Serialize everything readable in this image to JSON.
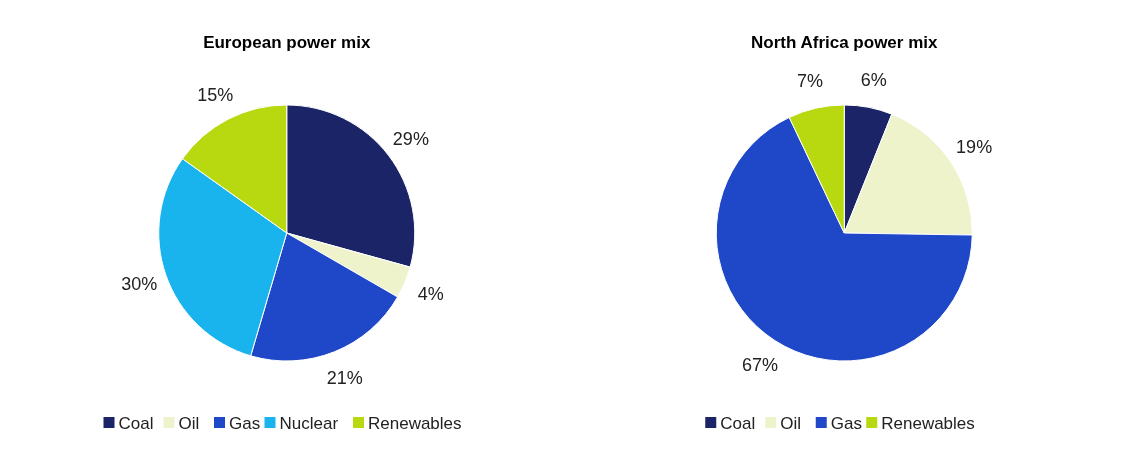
{
  "chart_data": [
    {
      "type": "pie",
      "title": "European power mix",
      "categories": [
        "Coal",
        "Oil",
        "Gas",
        "Nuclear",
        "Renewables"
      ],
      "values": [
        29,
        4,
        21,
        30,
        15
      ],
      "colors": [
        "#1a2466",
        "#eef3cc",
        "#1f48c8",
        "#19b4ee",
        "#b8d810"
      ],
      "value_labels": [
        "29%",
        "4%",
        "21%",
        "30%",
        "15%"
      ],
      "legend": "bottom"
    },
    {
      "type": "pie",
      "title": "North Africa power mix",
      "categories": [
        "Coal",
        "Oil",
        "Gas",
        "Renewables"
      ],
      "values": [
        6,
        19,
        67,
        7
      ],
      "colors": [
        "#1a2466",
        "#eef3cc",
        "#1f48c8",
        "#b8d810"
      ],
      "value_labels": [
        "6%",
        "19%",
        "67%",
        "7%"
      ],
      "legend": "bottom"
    }
  ]
}
